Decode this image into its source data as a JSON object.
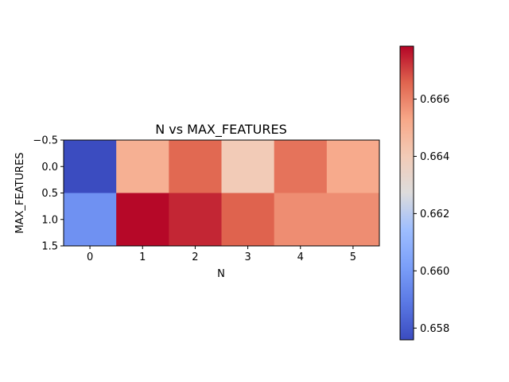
{
  "chart_data": {
    "type": "heatmap",
    "title": "N vs MAX_FEATURES",
    "xlabel": "N",
    "ylabel": "MAX_FEATURES",
    "colormap": "coolwarm",
    "x_tick_labels": [
      "0",
      "1",
      "2",
      "3",
      "4",
      "5"
    ],
    "y_tick_labels": [
      "−0.5",
      "0.0",
      "0.5",
      "1.0",
      "1.5"
    ],
    "ylim": [
      1.5,
      -0.5
    ],
    "xlim": [
      -0.5,
      5.5
    ],
    "values": [
      [
        0.6576,
        0.665,
        0.6665,
        0.664,
        0.6663,
        0.6652
      ],
      [
        0.6597,
        0.6678,
        0.6674,
        0.6666,
        0.6658,
        0.6658
      ]
    ],
    "colorbar": {
      "vmin": 0.65759,
      "vmax": 0.66785,
      "tick_values": [
        0.658,
        0.66,
        0.662,
        0.664,
        0.666
      ],
      "tick_labels": [
        "0.658",
        "0.660",
        "0.662",
        "0.664",
        "0.666"
      ]
    }
  }
}
